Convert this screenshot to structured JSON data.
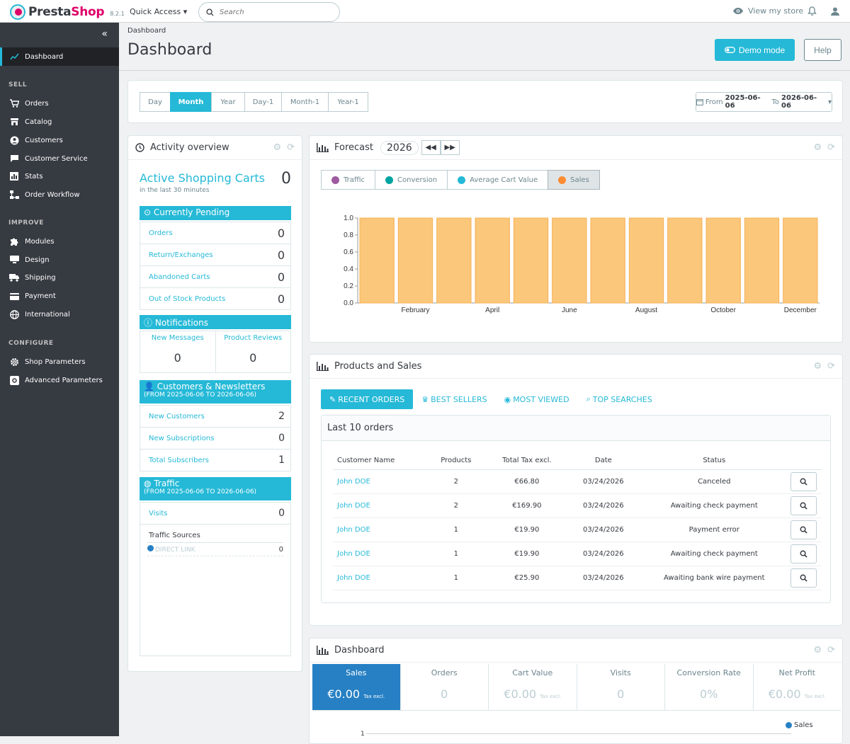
{
  "app": {
    "brand_a": "Presta",
    "brand_b": "Shop",
    "version": "8.2.1"
  },
  "topbar": {
    "quick_access": "Quick Access",
    "search_placeholder": "Search",
    "view_store": "View my store"
  },
  "sidebar": {
    "active": "Dashboard",
    "sections": [
      {
        "title": "SELL",
        "items": [
          "Orders",
          "Catalog",
          "Customers",
          "Customer Service",
          "Stats",
          "Order Workflow"
        ]
      },
      {
        "title": "IMPROVE",
        "items": [
          "Modules",
          "Design",
          "Shipping",
          "Payment",
          "International"
        ]
      },
      {
        "title": "CONFIGURE",
        "items": [
          "Shop Parameters",
          "Advanced Parameters"
        ]
      }
    ]
  },
  "header": {
    "breadcrumb": "Dashboard",
    "title": "Dashboard",
    "demo_mode": "Demo mode",
    "help": "Help"
  },
  "period": {
    "buttons": [
      "Day",
      "Month",
      "Year",
      "Day-1",
      "Month-1",
      "Year-1"
    ],
    "active": "Month",
    "from_label": "From",
    "from": "2025-06-06",
    "to_label": "To",
    "to": "2026-06-06"
  },
  "activity": {
    "title": "Activity overview",
    "active_carts_label": "Active Shopping Carts",
    "active_carts_value": "0",
    "active_carts_sub": "in the last 30 minutes",
    "pending_title": "Currently Pending",
    "pending": [
      {
        "label": "Orders",
        "value": "0"
      },
      {
        "label": "Return/Exchanges",
        "value": "0"
      },
      {
        "label": "Abandoned Carts",
        "value": "0"
      },
      {
        "label": "Out of Stock Products",
        "value": "0"
      }
    ],
    "notifications_title": "Notifications",
    "new_messages_label": "New Messages",
    "new_messages_value": "0",
    "product_reviews_label": "Product Reviews",
    "product_reviews_value": "0",
    "customers_title": "Customers & Newsletters",
    "customers_sub": "(FROM 2025-06-06 TO 2026-06-06)",
    "customers": [
      {
        "label": "New Customers",
        "value": "2"
      },
      {
        "label": "New Subscriptions",
        "value": "0"
      },
      {
        "label": "Total Subscribers",
        "value": "1"
      }
    ],
    "traffic_title": "Traffic",
    "traffic_sub": "(FROM 2025-06-06 TO 2026-06-06)",
    "visits_label": "Visits",
    "visits_value": "0",
    "sources_label": "Traffic Sources",
    "source_name": "DIRECT LINK",
    "source_value": "0"
  },
  "forecast": {
    "title": "Forecast",
    "year": "2026",
    "tabs": [
      {
        "label": "Traffic",
        "color": "#9e5ba1"
      },
      {
        "label": "Conversion",
        "color": "#00a4a0"
      },
      {
        "label": "Average Cart Value",
        "color": "#25b9d7"
      },
      {
        "label": "Sales",
        "color": "#fe8c32"
      }
    ],
    "active_tab": "Sales"
  },
  "chart_data": {
    "type": "bar",
    "categories": [
      "January",
      "February",
      "March",
      "April",
      "May",
      "June",
      "July",
      "August",
      "September",
      "October",
      "November",
      "December"
    ],
    "x_tick_labels": [
      "February",
      "April",
      "June",
      "August",
      "October",
      "December"
    ],
    "values": [
      1,
      1,
      1,
      1,
      1,
      1,
      1,
      1,
      1,
      1,
      1,
      1
    ],
    "ylim": [
      0,
      1
    ],
    "y_ticks": [
      "0.0",
      "0.2",
      "0.4",
      "0.6",
      "0.8",
      "1.0"
    ],
    "bar_color": "#fbc77a",
    "bar_border": "#f4b057"
  },
  "products_sales": {
    "title": "Products and Sales",
    "tabs": [
      "RECENT ORDERS",
      "BEST SELLERS",
      "MOST VIEWED",
      "TOP SEARCHES"
    ],
    "orders_title": "Last 10 orders",
    "columns": [
      "Customer Name",
      "Products",
      "Total Tax excl.",
      "Date",
      "Status"
    ],
    "rows": [
      {
        "customer": "John DOE",
        "products": "2",
        "total": "€66.80",
        "date": "03/24/2026",
        "status": "Canceled"
      },
      {
        "customer": "John DOE",
        "products": "2",
        "total": "€169.90",
        "date": "03/24/2026",
        "status": "Awaiting check payment"
      },
      {
        "customer": "John DOE",
        "products": "1",
        "total": "€19.90",
        "date": "03/24/2026",
        "status": "Payment error"
      },
      {
        "customer": "John DOE",
        "products": "1",
        "total": "€19.90",
        "date": "03/24/2026",
        "status": "Awaiting check payment"
      },
      {
        "customer": "John DOE",
        "products": "1",
        "total": "€25.90",
        "date": "03/24/2026",
        "status": "Awaiting bank wire payment"
      }
    ]
  },
  "dashboard_kpis": {
    "title": "Dashboard",
    "tax_note": "Tax excl.",
    "kpis": [
      {
        "label": "Sales",
        "value": "€0.00",
        "tax": true
      },
      {
        "label": "Orders",
        "value": "0",
        "tax": false
      },
      {
        "label": "Cart Value",
        "value": "€0.00",
        "tax": true
      },
      {
        "label": "Visits",
        "value": "0",
        "tax": false
      },
      {
        "label": "Conversion Rate",
        "value": "0%",
        "tax": false
      },
      {
        "label": "Net Profit",
        "value": "€0.00",
        "tax": true
      }
    ],
    "legend": "Sales",
    "first_tick": "1"
  }
}
